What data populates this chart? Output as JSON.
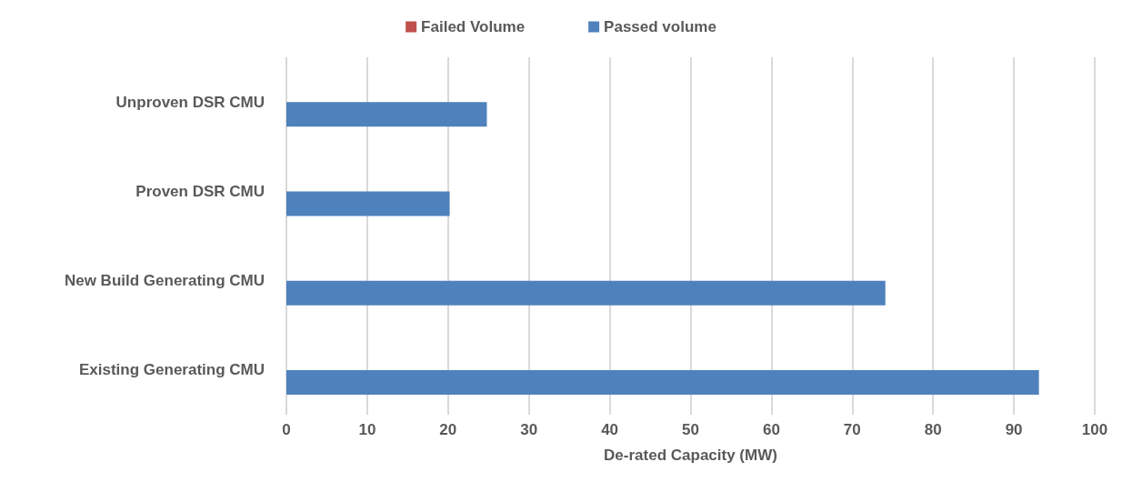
{
  "chart_data": {
    "type": "bar",
    "orientation": "horizontal",
    "xlabel": "De-rated Capacity (MW)",
    "categories": [
      "Unproven DSR CMU",
      "Proven DSR CMU",
      "New Build Generating CMU",
      "Existing Generating CMU"
    ],
    "series": [
      {
        "name": "Failed Volume",
        "color": "#c0504d",
        "values": [
          0,
          0,
          0,
          0
        ]
      },
      {
        "name": "Passed volume",
        "color": "#4f81bd",
        "values": [
          24.8,
          20.2,
          74.1,
          93.1
        ]
      }
    ],
    "xlim": [
      0,
      100
    ],
    "xticks": [
      0,
      10,
      20,
      30,
      40,
      50,
      60,
      70,
      80,
      90,
      100
    ],
    "grid": "x",
    "legend": "top"
  }
}
